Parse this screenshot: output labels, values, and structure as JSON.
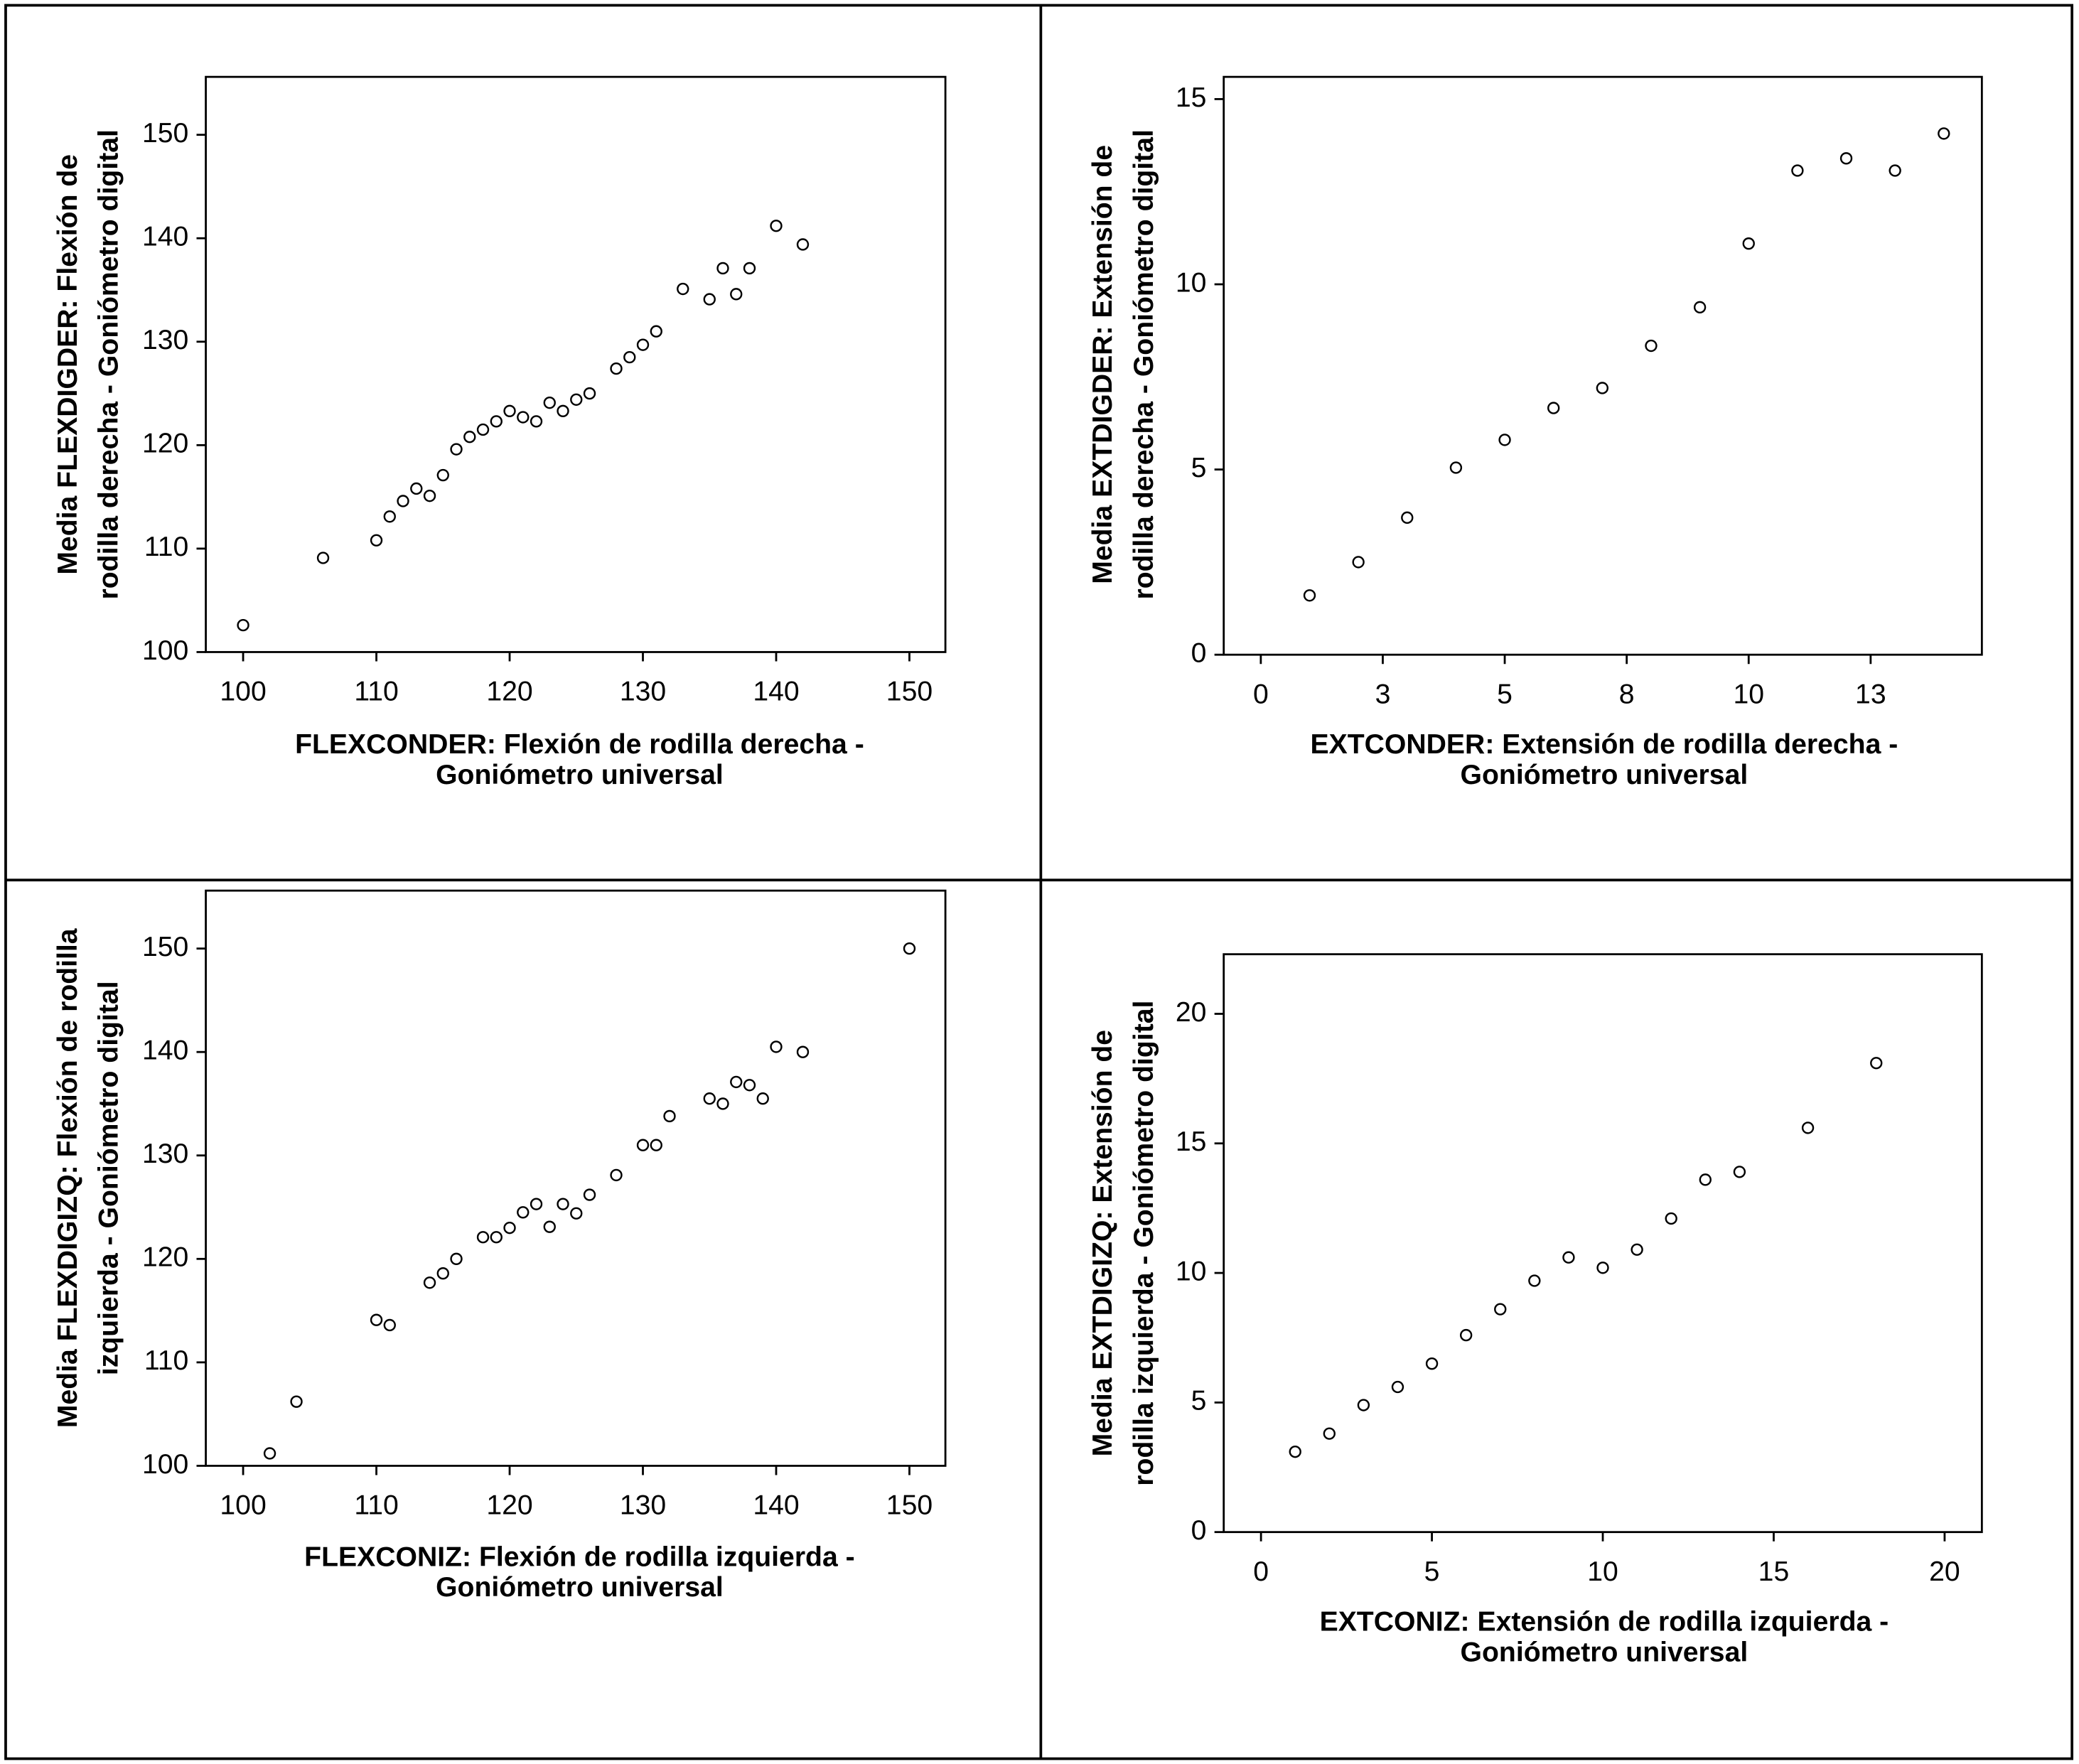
{
  "chart_data": [
    {
      "type": "scatter",
      "xlabel": [
        "FLEXCONDER: Flexión de rodilla derecha -",
        "Goniómetro universal"
      ],
      "ylabel": [
        "Media FLEXDIGDER: Flexión de",
        "rodilla derecha - Goniómetro digital"
      ],
      "x": [
        100,
        106,
        110,
        111,
        112,
        113,
        114,
        115,
        116,
        117,
        118,
        119,
        120,
        121,
        122,
        123,
        124,
        125,
        126,
        128,
        129,
        130,
        131,
        133,
        135,
        136,
        137,
        138,
        140,
        142
      ],
      "y": [
        102.6,
        109.1,
        110.8,
        113.1,
        114.6,
        115.8,
        115.1,
        117.1,
        119.6,
        120.8,
        121.5,
        122.3,
        123.3,
        122.7,
        122.3,
        124.1,
        123.3,
        124.4,
        125,
        127.4,
        128.5,
        129.7,
        131,
        135.1,
        134.1,
        137.1,
        134.6,
        137.1,
        141.2,
        139.4
      ],
      "xlim": [
        97.2,
        152.7
      ],
      "ylim": [
        100,
        155.6
      ],
      "xticks": [
        100,
        110,
        120,
        130,
        140,
        150
      ],
      "yticks": [
        100,
        110,
        120,
        130,
        140,
        150
      ],
      "color": "#000000"
    },
    {
      "type": "scatter",
      "xlabel": [
        "EXTCONDER: Extensión de rodilla derecha -",
        "Goniómetro universal"
      ],
      "ylabel": [
        "Media EXTDIGDER: Extensión de",
        "rodilla derecha - Goniómetro digital"
      ],
      "x": [
        1,
        2,
        3,
        4,
        5,
        6,
        7,
        8,
        9,
        10,
        11,
        12,
        13,
        14
      ],
      "y": [
        1.6,
        2.5,
        3.7,
        5.05,
        5.8,
        6.66,
        7.2,
        8.34,
        9.38,
        11.1,
        13.07,
        13.4,
        13.07,
        14.07
      ],
      "xlim": [
        -0.76,
        14.78
      ],
      "ylim": [
        0,
        15.6
      ],
      "xticks": [
        0,
        {
          "value": 2.5,
          "label": "3"
        },
        5,
        {
          "value": 7.5,
          "label": "8"
        },
        10,
        {
          "value": 12.5,
          "label": "13"
        }
      ],
      "yticks": [
        0,
        5,
        10,
        15
      ],
      "color": "#000000"
    },
    {
      "type": "scatter",
      "xlabel": [
        "FLEXCONIZ: Flexión de rodilla izquierda -",
        "Goniómetro universal"
      ],
      "ylabel": [
        "Media FLEXDIGIZQ: Flexión de rodilla",
        "izquierda - Goniómetro digital"
      ],
      "x": [
        102,
        104,
        110,
        111,
        114,
        115,
        116,
        118,
        119,
        120,
        121,
        122,
        123,
        124,
        125,
        126,
        128,
        130,
        131,
        132,
        135,
        136,
        137,
        138,
        139,
        140,
        142,
        150
      ],
      "y": [
        101.2,
        106.2,
        114.1,
        113.6,
        117.7,
        118.6,
        120,
        122.1,
        122.1,
        123,
        124.5,
        125.3,
        123.1,
        125.3,
        124.4,
        126.2,
        128.1,
        131,
        131,
        133.8,
        135.5,
        135,
        137.1,
        136.8,
        135.5,
        140.5,
        140,
        150
      ],
      "xlim": [
        97.2,
        152.7
      ],
      "ylim": [
        100,
        155.6
      ],
      "xticks": [
        100,
        110,
        120,
        130,
        140,
        150
      ],
      "yticks": [
        100,
        110,
        120,
        130,
        140,
        150
      ],
      "color": "#000000"
    },
    {
      "type": "scatter",
      "xlabel": [
        "EXTCONIZ: Extensión de rodilla izquierda -",
        "Goniómetro universal"
      ],
      "ylabel": [
        "Media EXTDIGIZQ: Extensión de",
        "rodilla izquierda - Goniómetro digital"
      ],
      "x": [
        1,
        2,
        3,
        4,
        5,
        6,
        7,
        8,
        9,
        10,
        11,
        12,
        13,
        14,
        16,
        18
      ],
      "y": [
        3.1,
        3.8,
        4.9,
        5.6,
        6.5,
        7.6,
        8.6,
        9.7,
        10.6,
        10.2,
        10.9,
        12.1,
        13.6,
        13.9,
        15.6,
        18.1
      ],
      "xlim": [
        -1.09,
        21.09
      ],
      "ylim": [
        0,
        22.3
      ],
      "xticks": [
        0,
        5,
        10,
        15,
        20
      ],
      "yticks": [
        0,
        5,
        10,
        15,
        20
      ],
      "color": "#000000"
    }
  ]
}
